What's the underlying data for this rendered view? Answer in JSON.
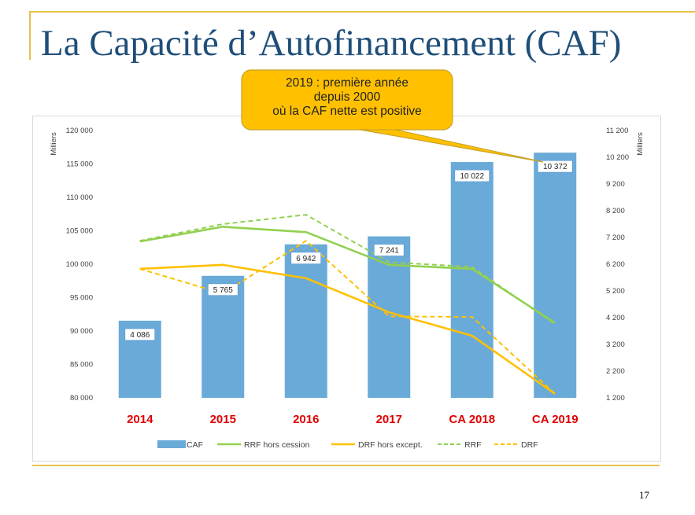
{
  "slide": {
    "title": "La Capacité d’Autofinancement (CAF)",
    "page_number": "17"
  },
  "callout": {
    "lines": [
      "2019 : première année",
      "depuis 2000",
      "où la CAF nette est positive"
    ],
    "fill": "#ffc000",
    "border": "#c9a227"
  },
  "chart_data": {
    "type": "bar",
    "categories": [
      "2014",
      "2015",
      "2016",
      "2017",
      "CA 2018",
      "CA 2019"
    ],
    "left_axis": {
      "label": "Milliers",
      "range": [
        80000,
        120000
      ],
      "ticks": [
        "80 000",
        "85 000",
        "90 000",
        "95 000",
        "100 000",
        "105 000",
        "110 000",
        "115 000",
        "120 000"
      ]
    },
    "right_axis": {
      "label": "Milliers",
      "range": [
        1200,
        11200
      ],
      "ticks": [
        "1 200",
        "2 200",
        "3 200",
        "4 200",
        "5 200",
        "6 200",
        "7 200",
        "8 200",
        "9 200",
        "10 200",
        "11 200"
      ]
    },
    "series": [
      {
        "name": "CAF",
        "type": "bar",
        "axis": "right",
        "color": "#6aaad8",
        "values": [
          4086,
          5765,
          6942,
          7241,
          10022,
          10372
        ],
        "labels": [
          "4 086",
          "5 765",
          "6 942",
          "7 241",
          "10 022",
          "10 372"
        ]
      },
      {
        "name": "RRF hors cession",
        "type": "line",
        "axis": "left",
        "color": "#92d050",
        "dash": false,
        "values": [
          103400,
          105600,
          104800,
          99900,
          99300,
          91200
        ]
      },
      {
        "name": "DRF hors except.",
        "type": "line",
        "axis": "left",
        "color": "#ffc000",
        "dash": false,
        "values": [
          99300,
          99900,
          97900,
          92800,
          89300,
          80600
        ]
      },
      {
        "name": "RRF",
        "type": "line",
        "axis": "left",
        "color": "#92d050",
        "dash": true,
        "values": [
          103500,
          106000,
          107400,
          100300,
          99600,
          91000
        ]
      },
      {
        "name": "DRF",
        "type": "line",
        "axis": "left",
        "color": "#ffc000",
        "dash": true,
        "values": [
          99300,
          95600,
          103500,
          92200,
          92100,
          80600
        ]
      }
    ],
    "category_color": "#e00000",
    "grid": false,
    "legend_position": "bottom"
  }
}
